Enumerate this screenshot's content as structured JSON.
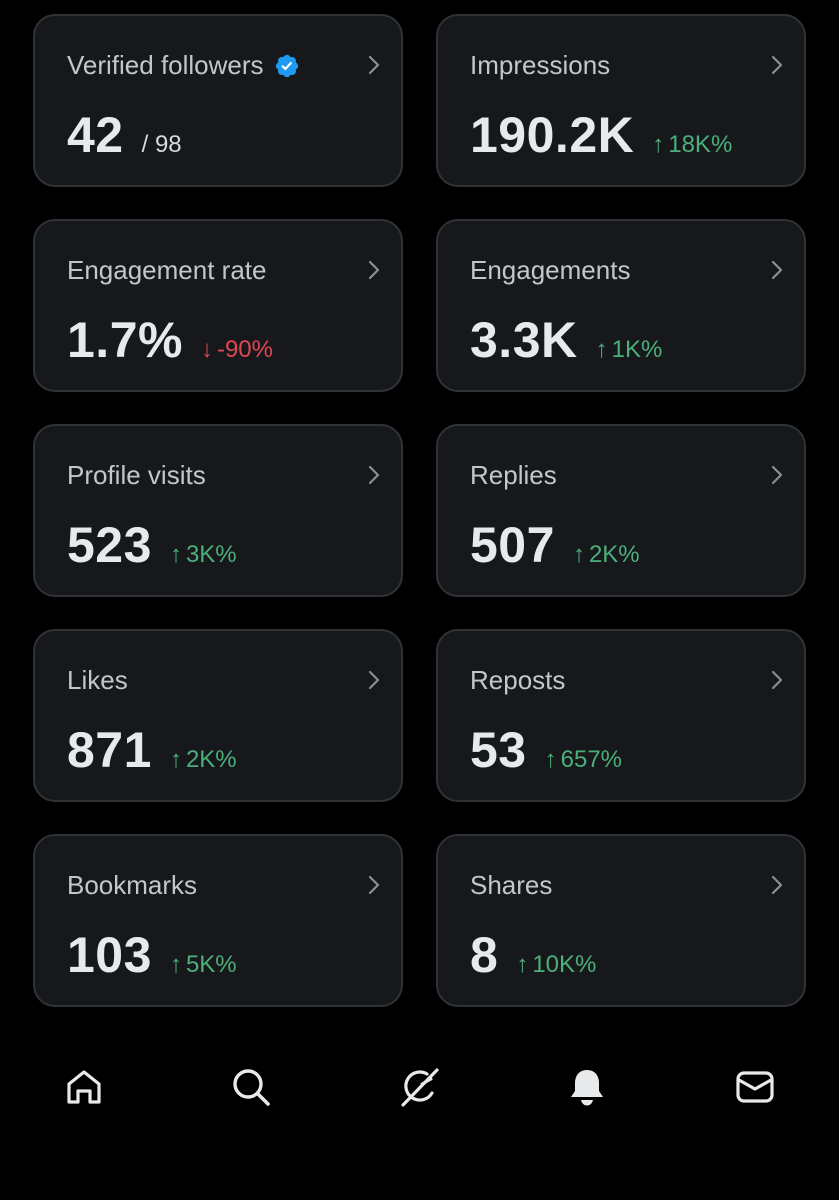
{
  "colors": {
    "background": "#000000",
    "card_bg": "#16181c",
    "card_border": "#2f3336",
    "up": "#4caf7a",
    "down": "#e0484f",
    "verified": "#1d9bf0"
  },
  "cards": [
    {
      "title": "Verified followers",
      "value": "42",
      "sub": "/ 98",
      "icon": "verified-badge-icon"
    },
    {
      "title": "Impressions",
      "value": "190.2K",
      "delta_arrow": "↑",
      "delta": "18K%",
      "direction": "up"
    },
    {
      "title": "Engagement rate",
      "value": "1.7%",
      "delta_arrow": "↓",
      "delta": "-90%",
      "direction": "down"
    },
    {
      "title": "Engagements",
      "value": "3.3K",
      "delta_arrow": "↑",
      "delta": "1K%",
      "direction": "up"
    },
    {
      "title": "Profile visits",
      "value": "523",
      "delta_arrow": "↑",
      "delta": "3K%",
      "direction": "up"
    },
    {
      "title": "Replies",
      "value": "507",
      "delta_arrow": "↑",
      "delta": "2K%",
      "direction": "up"
    },
    {
      "title": "Likes",
      "value": "871",
      "delta_arrow": "↑",
      "delta": "2K%",
      "direction": "up"
    },
    {
      "title": "Reposts",
      "value": "53",
      "delta_arrow": "↑",
      "delta": "657%",
      "direction": "up"
    },
    {
      "title": "Bookmarks",
      "value": "103",
      "delta_arrow": "↑",
      "delta": "5K%",
      "direction": "up"
    },
    {
      "title": "Shares",
      "value": "8",
      "delta_arrow": "↑",
      "delta": "10K%",
      "direction": "up"
    }
  ],
  "nav": [
    {
      "icon": "home-icon"
    },
    {
      "icon": "search-icon"
    },
    {
      "icon": "grok-icon"
    },
    {
      "icon": "notifications-bell-icon"
    },
    {
      "icon": "messages-mail-icon"
    }
  ]
}
